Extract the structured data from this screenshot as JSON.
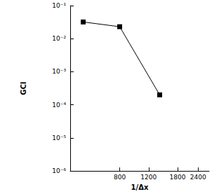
{
  "chart_data": {
    "type": "line",
    "x_label": "1/Δx",
    "y_label": "GCI",
    "x": [
      480,
      800,
      1400
    ],
    "series": [
      {
        "name": "GCI",
        "color": "#000000",
        "values": [
          0.032,
          0.023,
          0.0002
        ],
        "marker": "square",
        "line_style": "solid"
      }
    ],
    "log": true,
    "xlim": [
      400,
      2800
    ],
    "xticks": [
      800,
      1200,
      1800,
      2400
    ],
    "ylim": [
      1e-06,
      0.1
    ],
    "yticks": [
      {
        "value": 1e-06,
        "label": "10⁻⁶"
      },
      {
        "value": 1e-05,
        "label": "10⁻⁵"
      },
      {
        "value": 0.0001,
        "label": "10⁻⁴"
      },
      {
        "value": 0.001,
        "label": "10⁻³"
      },
      {
        "value": 0.01,
        "label": "10⁻²"
      },
      {
        "value": 0.1,
        "label": "10⁻¹"
      }
    ],
    "grid": false
  }
}
